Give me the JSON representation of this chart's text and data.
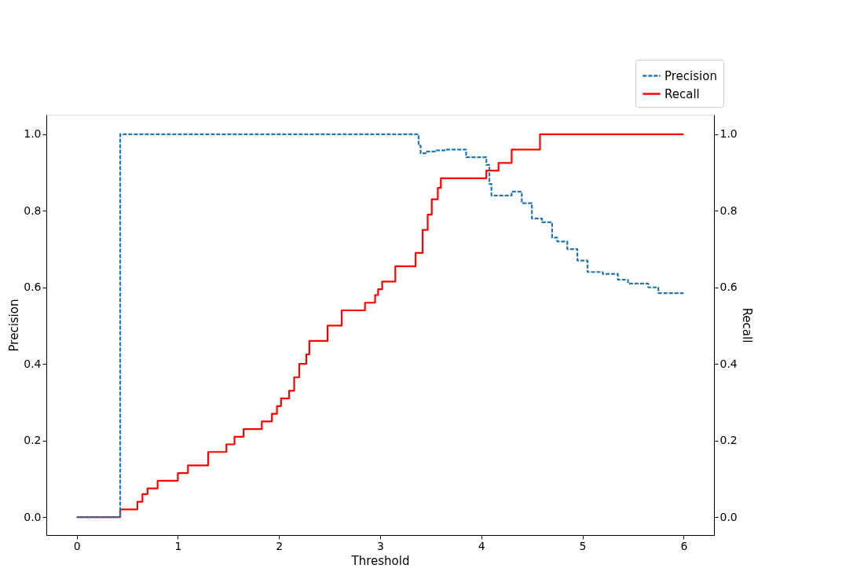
{
  "chart_data": {
    "type": "step",
    "xlabel": "Threshold",
    "ylabel": "Precision",
    "y2label": "Recall",
    "xlim": [
      -0.3,
      6.3
    ],
    "xticks": [
      0,
      1,
      2,
      3,
      4,
      5,
      6
    ],
    "ylim": [
      -0.047,
      1.051
    ],
    "yticks": [
      {
        "value": 0,
        "label": "0.0"
      },
      {
        "value": 0.2,
        "label": "0.2"
      },
      {
        "value": 0.4,
        "label": "0.4"
      },
      {
        "value": 0.6,
        "label": "0.6"
      },
      {
        "value": 0.8,
        "label": "0.8"
      },
      {
        "value": 1,
        "label": "1.0"
      }
    ],
    "y2lim": [
      -0.047,
      1.051
    ],
    "y2ticks": [
      {
        "value": 0,
        "label": "0.0"
      },
      {
        "value": 0.2,
        "label": "0.2"
      },
      {
        "value": 0.4,
        "label": "0.4"
      },
      {
        "value": 0.6,
        "label": "0.6"
      },
      {
        "value": 0.8,
        "label": "0.8"
      },
      {
        "value": 1,
        "label": "1.0"
      }
    ],
    "grid": false,
    "legend": "top right",
    "series": [
      {
        "name": "Precision",
        "color": "#1f77b4",
        "line_style": "dashed",
        "x": [
          0,
          0.43,
          3.38,
          3.4,
          3.45,
          3.55,
          3.65,
          3.85,
          4.05,
          4.08,
          4.1,
          4.13,
          4.3,
          4.4,
          4.5,
          4.6,
          4.7,
          4.75,
          4.85,
          4.95,
          5.05,
          5.2,
          5.35,
          5.45,
          5.65,
          5.75,
          6.0
        ],
        "values": [
          0,
          1.0,
          0.97,
          0.95,
          0.955,
          0.958,
          0.96,
          0.94,
          0.92,
          0.87,
          0.84,
          0.84,
          0.85,
          0.82,
          0.78,
          0.77,
          0.73,
          0.72,
          0.7,
          0.67,
          0.64,
          0.635,
          0.62,
          0.61,
          0.6,
          0.585,
          0.585
        ]
      },
      {
        "name": "Recall",
        "color": "#ff0000",
        "line_style": "solid",
        "axis": "y2",
        "x": [
          0,
          0.43,
          0.6,
          0.65,
          0.7,
          0.8,
          1.0,
          1.1,
          1.3,
          1.48,
          1.56,
          1.65,
          1.83,
          1.93,
          1.98,
          2.02,
          2.1,
          2.15,
          2.2,
          2.27,
          2.3,
          2.48,
          2.62,
          2.85,
          2.95,
          2.98,
          3.02,
          3.15,
          3.35,
          3.42,
          3.47,
          3.51,
          3.57,
          3.6,
          4.05,
          4.17,
          4.3,
          4.58,
          6.0
        ],
        "values": [
          0,
          0.02,
          0.04,
          0.06,
          0.075,
          0.095,
          0.115,
          0.135,
          0.17,
          0.19,
          0.21,
          0.23,
          0.25,
          0.27,
          0.29,
          0.31,
          0.33,
          0.365,
          0.4,
          0.425,
          0.46,
          0.5,
          0.54,
          0.56,
          0.58,
          0.595,
          0.615,
          0.655,
          0.69,
          0.75,
          0.79,
          0.83,
          0.86,
          0.885,
          0.905,
          0.925,
          0.96,
          1.0,
          1.0
        ]
      }
    ]
  }
}
